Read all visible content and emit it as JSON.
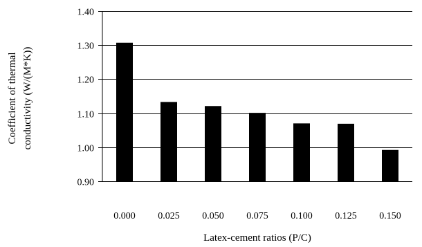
{
  "chart_data": {
    "type": "bar",
    "categories": [
      "0.000",
      "0.025",
      "0.050",
      "0.075",
      "0.100",
      "0.125",
      "0.150"
    ],
    "values": [
      1.307,
      1.133,
      1.121,
      1.101,
      1.07,
      1.069,
      0.992
    ],
    "xlabel": "Latex-cement ratios (P/C)",
    "ylabel_lines": [
      "Coefficient of thermal",
      "conductivity (W/(M*K))"
    ],
    "ylim": [
      0.9,
      1.4
    ],
    "yticks": [
      "0.90",
      "1.00",
      "1.10",
      "1.20",
      "1.30",
      "1.40"
    ],
    "grid": true,
    "legend": "none",
    "bar_color": "#000000",
    "grid_color": "#000000"
  }
}
